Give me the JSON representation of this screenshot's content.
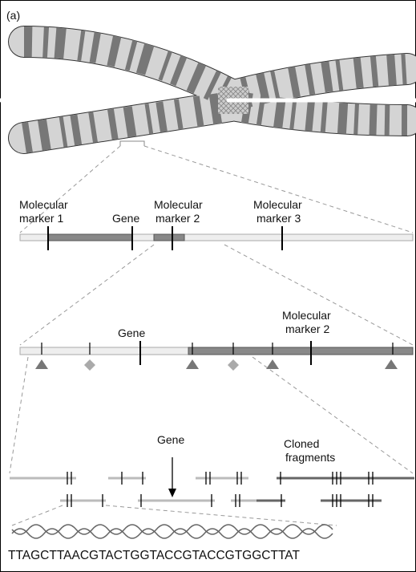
{
  "panel_label": "(a)",
  "level1": {
    "labels": [
      [
        "Molecular",
        "marker 1"
      ],
      [
        "Gene"
      ],
      [
        "Molecular",
        "marker 2"
      ],
      [
        "Molecular",
        "marker 3"
      ]
    ]
  },
  "level2": {
    "labels": [
      [
        "Gene"
      ],
      [
        "Molecular",
        "marker 2"
      ]
    ]
  },
  "level3": {
    "labels": [
      [
        "Gene"
      ],
      [
        "Cloned",
        "fragments"
      ]
    ]
  },
  "sequence": "TTAGCTTAACGTACTGGTACCGTACCGTGGCTTAT"
}
